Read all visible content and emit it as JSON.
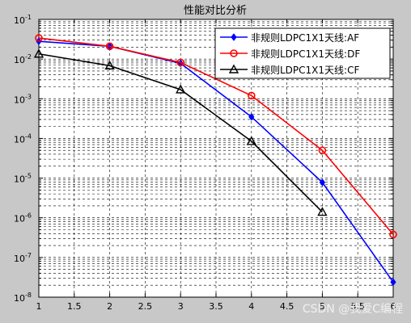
{
  "chart_data": {
    "type": "line",
    "title": "性能对比分析",
    "xlabel": "",
    "ylabel": "",
    "xlim": [
      1,
      6
    ],
    "ylim": [
      1e-08,
      0.1
    ],
    "yscale": "log",
    "grid": true,
    "legend_position": "top-right",
    "x_ticks": [
      "1",
      "1.5",
      "2",
      "2.5",
      "3",
      "3.5",
      "4",
      "4.5",
      "5",
      "5.5",
      "6"
    ],
    "x_tick_values": [
      1,
      1.5,
      2,
      2.5,
      3,
      3.5,
      4,
      4.5,
      5,
      5.5,
      6
    ],
    "y_ticks": [
      {
        "base": "10",
        "exp": "-8",
        "value": 1e-08
      },
      {
        "base": "10",
        "exp": "-7",
        "value": 1e-07
      },
      {
        "base": "10",
        "exp": "-6",
        "value": 1e-06
      },
      {
        "base": "10",
        "exp": "-5",
        "value": 1e-05
      },
      {
        "base": "10",
        "exp": "-4",
        "value": 0.0001
      },
      {
        "base": "10",
        "exp": "-3",
        "value": 0.001
      },
      {
        "base": "10",
        "exp": "-2",
        "value": 0.01
      },
      {
        "base": "10",
        "exp": "-1",
        "value": 0.1
      }
    ],
    "series": [
      {
        "name": "非规则LDPC1X1天线:AF",
        "color": "#0000ff",
        "marker": "diamond",
        "x": [
          1,
          2,
          3,
          4,
          5,
          6
        ],
        "values": [
          0.028,
          0.021,
          0.0078,
          0.00035,
          7.8e-06,
          2.4e-08
        ]
      },
      {
        "name": "非规则LDPC1X1天线:DF",
        "color": "#ff0000",
        "marker": "circle",
        "x": [
          1,
          2,
          3,
          4,
          5,
          6
        ],
        "values": [
          0.034,
          0.021,
          0.0082,
          0.0012,
          5e-05,
          3.8e-07
        ]
      },
      {
        "name": "非规则LDPC1X1天线:CF",
        "color": "#000000",
        "marker": "triangle",
        "x": [
          1,
          2,
          3,
          4,
          5
        ],
        "values": [
          0.0135,
          0.0068,
          0.0017,
          8.5e-05,
          1.4e-06
        ]
      }
    ]
  },
  "watermark": "CSDN @我爱C编程"
}
